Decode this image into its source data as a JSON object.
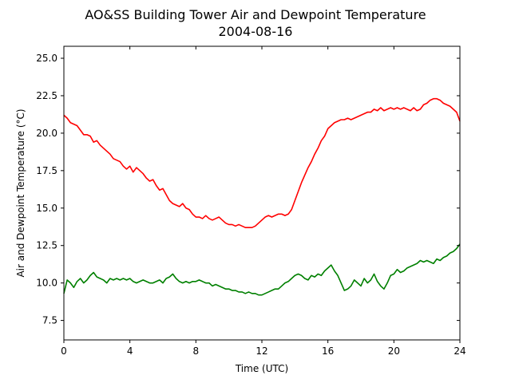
{
  "chart_data": {
    "type": "line",
    "title": "AO&SS Building Tower Air and Dewpoint Temperature",
    "subtitle": "2004-08-16",
    "xlabel": "Time (UTC)",
    "ylabel": "Air and Dewpoint Temperature (°C)",
    "xlim": [
      0,
      24
    ],
    "ylim": [
      6.2,
      25.8
    ],
    "xticks": [
      0,
      4,
      8,
      12,
      16,
      20,
      24
    ],
    "yticks": [
      7.5,
      10.0,
      12.5,
      15.0,
      17.5,
      20.0,
      22.5,
      25.0
    ],
    "ytick_labels": [
      "7.5",
      "10.0",
      "12.5",
      "15.0",
      "17.5",
      "20.0",
      "22.5",
      "25.0"
    ],
    "grid": false,
    "series": [
      {
        "color": "#ff0000",
        "x": [
          0,
          0.2,
          0.4,
          0.6,
          0.8,
          1.0,
          1.2,
          1.4,
          1.6,
          1.8,
          2.0,
          2.2,
          2.4,
          2.6,
          2.8,
          3.0,
          3.2,
          3.4,
          3.6,
          3.8,
          4.0,
          4.2,
          4.4,
          4.6,
          4.8,
          5.0,
          5.2,
          5.4,
          5.6,
          5.8,
          6.0,
          6.2,
          6.4,
          6.6,
          6.8,
          7.0,
          7.2,
          7.4,
          7.6,
          7.8,
          8.0,
          8.2,
          8.4,
          8.6,
          8.8,
          9.0,
          9.2,
          9.4,
          9.6,
          9.8,
          10.0,
          10.2,
          10.4,
          10.6,
          10.8,
          11.0,
          11.2,
          11.4,
          11.6,
          11.8,
          12.0,
          12.2,
          12.4,
          12.6,
          12.8,
          13.0,
          13.2,
          13.4,
          13.6,
          13.8,
          14.0,
          14.2,
          14.4,
          14.6,
          14.8,
          15.0,
          15.2,
          15.4,
          15.6,
          15.8,
          16.0,
          16.2,
          16.4,
          16.6,
          16.8,
          17.0,
          17.2,
          17.4,
          17.6,
          17.8,
          18.0,
          18.2,
          18.4,
          18.6,
          18.8,
          19.0,
          19.2,
          19.4,
          19.6,
          19.8,
          20.0,
          20.2,
          20.4,
          20.6,
          20.8,
          21.0,
          21.2,
          21.4,
          21.6,
          21.8,
          22.0,
          22.2,
          22.4,
          22.6,
          22.8,
          23.0,
          23.2,
          23.4,
          23.6,
          23.8,
          24.0
        ],
        "y": [
          21.2,
          21.0,
          20.7,
          20.6,
          20.5,
          20.2,
          19.9,
          19.9,
          19.8,
          19.4,
          19.5,
          19.2,
          19.0,
          18.8,
          18.6,
          18.3,
          18.2,
          18.1,
          17.8,
          17.6,
          17.8,
          17.4,
          17.7,
          17.5,
          17.3,
          17.0,
          16.8,
          16.9,
          16.5,
          16.2,
          16.3,
          15.9,
          15.5,
          15.3,
          15.2,
          15.1,
          15.3,
          15.0,
          14.9,
          14.6,
          14.4,
          14.4,
          14.3,
          14.5,
          14.3,
          14.2,
          14.3,
          14.4,
          14.2,
          14.0,
          13.9,
          13.9,
          13.8,
          13.9,
          13.8,
          13.7,
          13.7,
          13.7,
          13.8,
          14.0,
          14.2,
          14.4,
          14.5,
          14.4,
          14.5,
          14.6,
          14.6,
          14.5,
          14.6,
          14.9,
          15.5,
          16.1,
          16.7,
          17.2,
          17.7,
          18.1,
          18.6,
          19.0,
          19.5,
          19.8,
          20.3,
          20.5,
          20.7,
          20.8,
          20.9,
          20.9,
          21.0,
          20.9,
          21.0,
          21.1,
          21.2,
          21.3,
          21.4,
          21.4,
          21.6,
          21.5,
          21.7,
          21.5,
          21.6,
          21.7,
          21.6,
          21.7,
          21.6,
          21.7,
          21.6,
          21.5,
          21.7,
          21.5,
          21.6,
          21.9,
          22.0,
          22.2,
          22.3,
          22.3,
          22.2,
          22.0,
          21.9,
          21.8,
          21.6,
          21.4,
          20.8
        ]
      },
      {
        "color": "#008000",
        "x": [
          0,
          0.2,
          0.4,
          0.6,
          0.8,
          1.0,
          1.2,
          1.4,
          1.6,
          1.8,
          2.0,
          2.2,
          2.4,
          2.6,
          2.8,
          3.0,
          3.2,
          3.4,
          3.6,
          3.8,
          4.0,
          4.2,
          4.4,
          4.6,
          4.8,
          5.0,
          5.2,
          5.4,
          5.6,
          5.8,
          6.0,
          6.2,
          6.4,
          6.6,
          6.8,
          7.0,
          7.2,
          7.4,
          7.6,
          7.8,
          8.0,
          8.2,
          8.4,
          8.6,
          8.8,
          9.0,
          9.2,
          9.4,
          9.6,
          9.8,
          10.0,
          10.2,
          10.4,
          10.6,
          10.8,
          11.0,
          11.2,
          11.4,
          11.6,
          11.8,
          12.0,
          12.2,
          12.4,
          12.6,
          12.8,
          13.0,
          13.2,
          13.4,
          13.6,
          13.8,
          14.0,
          14.2,
          14.4,
          14.6,
          14.8,
          15.0,
          15.2,
          15.4,
          15.6,
          15.8,
          16.0,
          16.2,
          16.4,
          16.6,
          16.8,
          17.0,
          17.2,
          17.4,
          17.6,
          17.8,
          18.0,
          18.2,
          18.4,
          18.6,
          18.8,
          19.0,
          19.2,
          19.4,
          19.6,
          19.8,
          20.0,
          20.2,
          20.4,
          20.6,
          20.8,
          21.0,
          21.2,
          21.4,
          21.6,
          21.8,
          22.0,
          22.2,
          22.4,
          22.6,
          22.8,
          23.0,
          23.2,
          23.4,
          23.6,
          23.8,
          24.0
        ],
        "y": [
          9.3,
          10.2,
          10.0,
          9.7,
          10.1,
          10.3,
          10.0,
          10.2,
          10.5,
          10.7,
          10.4,
          10.3,
          10.2,
          10.0,
          10.3,
          10.2,
          10.3,
          10.2,
          10.3,
          10.2,
          10.3,
          10.1,
          10.0,
          10.1,
          10.2,
          10.1,
          10.0,
          10.0,
          10.1,
          10.2,
          10.0,
          10.3,
          10.4,
          10.6,
          10.3,
          10.1,
          10.0,
          10.1,
          10.0,
          10.1,
          10.1,
          10.2,
          10.1,
          10.0,
          10.0,
          9.8,
          9.9,
          9.8,
          9.7,
          9.6,
          9.6,
          9.5,
          9.5,
          9.4,
          9.4,
          9.3,
          9.4,
          9.3,
          9.3,
          9.2,
          9.2,
          9.3,
          9.4,
          9.5,
          9.6,
          9.6,
          9.8,
          10.0,
          10.1,
          10.3,
          10.5,
          10.6,
          10.5,
          10.3,
          10.2,
          10.5,
          10.4,
          10.6,
          10.5,
          10.8,
          11.0,
          11.2,
          10.8,
          10.5,
          10.0,
          9.5,
          9.6,
          9.8,
          10.2,
          10.0,
          9.8,
          10.3,
          10.0,
          10.2,
          10.6,
          10.1,
          9.8,
          9.6,
          10.0,
          10.5,
          10.6,
          10.9,
          10.7,
          10.8,
          11.0,
          11.1,
          11.2,
          11.3,
          11.5,
          11.4,
          11.5,
          11.4,
          11.3,
          11.6,
          11.5,
          11.7,
          11.8,
          12.0,
          12.1,
          12.3,
          12.6
        ]
      }
    ]
  }
}
